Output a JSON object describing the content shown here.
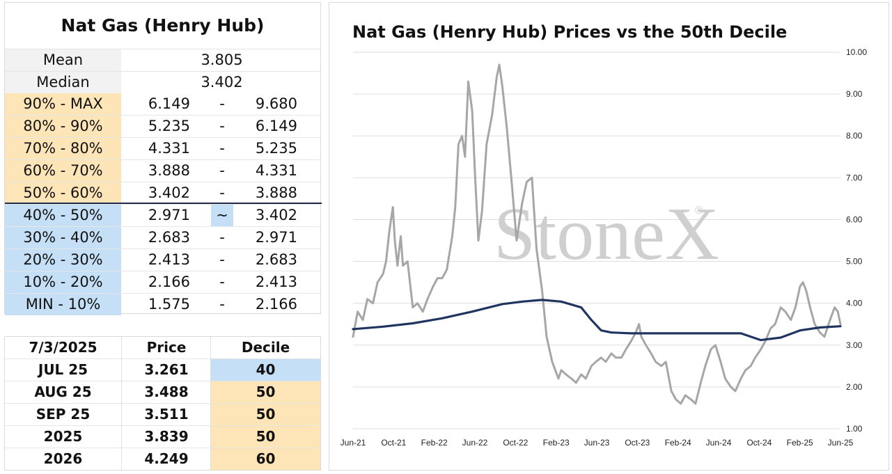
{
  "decile_table": {
    "title": "Nat Gas (Henry Hub)",
    "mean_label": "Mean",
    "mean_value": "3.805",
    "median_label": "Median",
    "median_value": "3.402",
    "rows": [
      {
        "label": "90% - MAX",
        "low": "6.149",
        "sep": "-",
        "high": "9.680",
        "band": "upper"
      },
      {
        "label": "80% - 90%",
        "low": "5.235",
        "sep": "-",
        "high": "6.149",
        "band": "upper"
      },
      {
        "label": "70% - 80%",
        "low": "4.331",
        "sep": "-",
        "high": "5.235",
        "band": "upper"
      },
      {
        "label": "60% - 70%",
        "low": "3.888",
        "sep": "-",
        "high": "4.331",
        "band": "upper"
      },
      {
        "label": "50% - 60%",
        "low": "3.402",
        "sep": "-",
        "high": "3.888",
        "band": "upper"
      },
      {
        "label": "40% - 50%",
        "low": "2.971",
        "sep": "~",
        "high": "3.402",
        "band": "lower",
        "current": true
      },
      {
        "label": "30% - 40%",
        "low": "2.683",
        "sep": "-",
        "high": "2.971",
        "band": "lower"
      },
      {
        "label": "20% - 30%",
        "low": "2.413",
        "sep": "-",
        "high": "2.683",
        "band": "lower"
      },
      {
        "label": "10% - 20%",
        "low": "2.166",
        "sep": "-",
        "high": "2.413",
        "band": "lower"
      },
      {
        "label": "MIN - 10%",
        "low": "1.575",
        "sep": "-",
        "high": "2.166",
        "band": "lower"
      }
    ]
  },
  "contract_table": {
    "headers": {
      "date": "7/3/2025",
      "price": "Price",
      "decile": "Decile"
    },
    "rows": [
      {
        "contract": "JUL 25",
        "price": "3.261",
        "decile": "40",
        "band": "lower"
      },
      {
        "contract": "AUG 25",
        "price": "3.488",
        "decile": "50",
        "band": "upper"
      },
      {
        "contract": "SEP 25",
        "price": "3.511",
        "decile": "50",
        "band": "upper"
      },
      {
        "contract": "2025",
        "price": "3.839",
        "decile": "50",
        "band": "upper"
      },
      {
        "contract": "2026",
        "price": "4.249",
        "decile": "60",
        "band": "upper"
      }
    ]
  },
  "colors": {
    "upper_band": "#fde5b8",
    "lower_band": "#c5e0f6",
    "price_line": "#a6a6a6",
    "median_line": "#1f3560",
    "watermark": "#cfcfcf"
  },
  "watermark": {
    "text": "StoneX",
    "mark": "®"
  },
  "chart_data": {
    "type": "line",
    "title": "Nat Gas (Henry Hub) Prices vs the 50th Decile",
    "xlabel": "",
    "ylabel": "",
    "ylim": [
      1.0,
      10.0
    ],
    "yticks": [
      "1.00",
      "2.00",
      "3.00",
      "4.00",
      "5.00",
      "6.00",
      "7.00",
      "8.00",
      "9.00",
      "10.00"
    ],
    "y_axis_position": "right",
    "grid": "horizontal",
    "xticks": [
      "Jun-21",
      "Oct-21",
      "Feb-22",
      "Jun-22",
      "Oct-22",
      "Feb-23",
      "Jun-23",
      "Oct-23",
      "Feb-24",
      "Jun-24",
      "Oct-24",
      "Feb-25",
      "Jun-25"
    ],
    "legend": "none",
    "series": [
      {
        "style": "price",
        "x": [
          "2021-06-01",
          "2021-06-15",
          "2021-07-01",
          "2021-07-15",
          "2021-08-01",
          "2021-08-15",
          "2021-09-01",
          "2021-09-10",
          "2021-09-20",
          "2021-10-01",
          "2021-10-07",
          "2021-10-15",
          "2021-10-25",
          "2021-11-01",
          "2021-11-15",
          "2021-12-01",
          "2021-12-15",
          "2022-01-01",
          "2022-01-15",
          "2022-02-01",
          "2022-02-15",
          "2022-03-01",
          "2022-03-15",
          "2022-04-01",
          "2022-04-10",
          "2022-04-20",
          "2022-05-01",
          "2022-05-10",
          "2022-05-20",
          "2022-06-01",
          "2022-06-10",
          "2022-06-20",
          "2022-07-01",
          "2022-07-15",
          "2022-08-01",
          "2022-08-15",
          "2022-08-23",
          "2022-09-01",
          "2022-09-15",
          "2022-10-01",
          "2022-10-15",
          "2022-11-01",
          "2022-11-15",
          "2022-12-01",
          "2022-12-15",
          "2023-01-01",
          "2023-01-15",
          "2023-02-01",
          "2023-02-20",
          "2023-03-01",
          "2023-03-15",
          "2023-04-01",
          "2023-04-15",
          "2023-05-01",
          "2023-05-15",
          "2023-06-01",
          "2023-06-15",
          "2023-07-01",
          "2023-07-15",
          "2023-08-01",
          "2023-08-15",
          "2023-09-01",
          "2023-09-15",
          "2023-10-01",
          "2023-10-15",
          "2023-10-25",
          "2023-11-01",
          "2023-11-15",
          "2023-12-01",
          "2023-12-15",
          "2024-01-01",
          "2024-01-15",
          "2024-02-01",
          "2024-02-15",
          "2024-03-01",
          "2024-03-15",
          "2024-04-01",
          "2024-04-15",
          "2024-05-01",
          "2024-05-15",
          "2024-06-01",
          "2024-06-15",
          "2024-07-01",
          "2024-07-15",
          "2024-08-01",
          "2024-08-15",
          "2024-09-01",
          "2024-09-15",
          "2024-10-01",
          "2024-10-15",
          "2024-11-01",
          "2024-11-15",
          "2024-12-01",
          "2024-12-15",
          "2025-01-01",
          "2025-01-15",
          "2025-02-01",
          "2025-02-15",
          "2025-03-01",
          "2025-03-10",
          "2025-03-20",
          "2025-04-01",
          "2025-04-15",
          "2025-05-01",
          "2025-05-15",
          "2025-06-01",
          "2025-06-15",
          "2025-06-25",
          "2025-07-03"
        ],
        "values": [
          3.2,
          3.8,
          3.6,
          4.1,
          4.0,
          4.5,
          4.7,
          5.0,
          5.7,
          6.3,
          5.5,
          4.9,
          5.6,
          4.9,
          5.0,
          3.9,
          4.0,
          3.8,
          4.1,
          4.4,
          4.6,
          4.6,
          4.8,
          5.6,
          6.3,
          7.8,
          8.0,
          7.5,
          9.3,
          8.6,
          7.0,
          5.5,
          6.2,
          7.8,
          8.5,
          9.4,
          9.7,
          9.2,
          8.2,
          6.8,
          5.5,
          6.4,
          6.9,
          7.0,
          5.3,
          4.3,
          3.2,
          2.6,
          2.2,
          2.4,
          2.3,
          2.2,
          2.1,
          2.3,
          2.2,
          2.5,
          2.6,
          2.7,
          2.6,
          2.8,
          2.7,
          2.7,
          2.9,
          3.1,
          3.3,
          3.5,
          3.2,
          3.0,
          2.8,
          2.6,
          2.5,
          2.6,
          1.9,
          1.7,
          1.6,
          1.8,
          1.7,
          1.6,
          2.1,
          2.5,
          2.9,
          3.0,
          2.6,
          2.2,
          2.0,
          1.9,
          2.2,
          2.4,
          2.5,
          2.7,
          2.9,
          3.1,
          3.4,
          3.5,
          3.9,
          3.8,
          3.6,
          3.9,
          4.4,
          4.5,
          4.3,
          3.9,
          3.5,
          3.3,
          3.2,
          3.6,
          3.9,
          3.8,
          3.5
        ]
      },
      {
        "style": "median",
        "x": [
          "2021-06-01",
          "2021-09-01",
          "2021-12-01",
          "2022-03-01",
          "2022-06-01",
          "2022-09-01",
          "2022-11-01",
          "2023-01-01",
          "2023-03-01",
          "2023-05-01",
          "2023-06-01",
          "2023-07-01",
          "2023-08-01",
          "2023-10-01",
          "2024-01-01",
          "2024-05-01",
          "2024-09-01",
          "2024-11-01",
          "2025-01-01",
          "2025-03-01",
          "2025-05-01",
          "2025-07-03"
        ],
        "values": [
          3.38,
          3.44,
          3.52,
          3.64,
          3.8,
          3.98,
          4.04,
          4.08,
          4.04,
          3.9,
          3.6,
          3.35,
          3.3,
          3.28,
          3.28,
          3.28,
          3.28,
          3.12,
          3.18,
          3.35,
          3.42,
          3.45
        ]
      }
    ]
  }
}
